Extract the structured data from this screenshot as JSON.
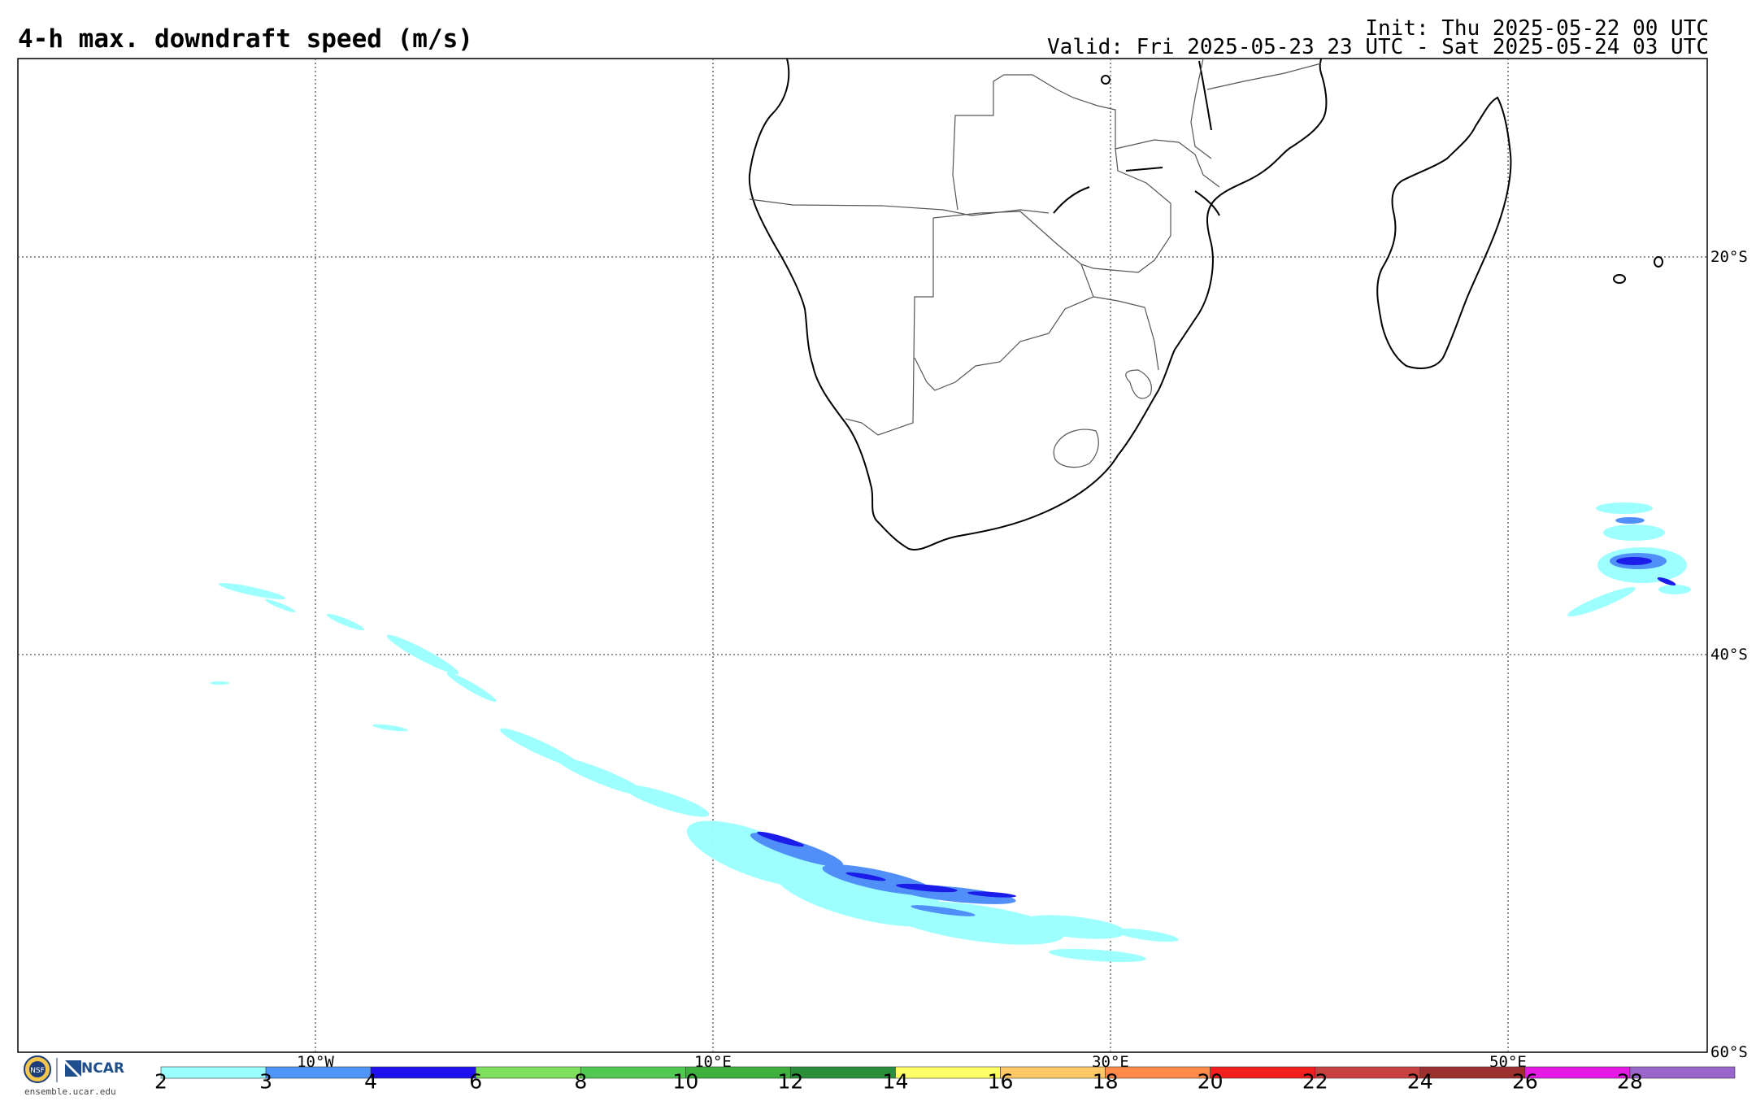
{
  "header": {
    "title": "4-h max. downdraft speed (m/s)",
    "init": "Init: Thu 2025-05-22 00 UTC",
    "valid": "Valid: Fri 2025-05-23 23 UTC - Sat 2025-05-24 03 UTC"
  },
  "map": {
    "lat_labels": [
      "20°S",
      "40°S",
      "60°S"
    ],
    "lon_labels": [
      "10°W",
      "10°E",
      "30°E",
      "50°E"
    ],
    "colors": {
      "coast": "#000000",
      "border": "#555555",
      "grid": "#555555",
      "field_low": "#99ffff",
      "field_mid": "#4f8ff7",
      "field_high": "#1c1cea"
    }
  },
  "colorbar": {
    "ticks": [
      "2",
      "3",
      "4",
      "6",
      "8",
      "10",
      "12",
      "14",
      "16",
      "18",
      "20",
      "22",
      "24",
      "26",
      "28"
    ],
    "colors": [
      "#99ffff",
      "#4f94f7",
      "#1f11ee",
      "#7fe05e",
      "#52c952",
      "#3eb03e",
      "#2a8f3a",
      "#ffff66",
      "#ffc866",
      "#ff8a4a",
      "#f21f1f",
      "#c94040",
      "#9e2f2f",
      "#e619e6",
      "#9a66cc"
    ]
  },
  "footer": {
    "site": "ensemble.ucar.edu",
    "ncar_label": "NCAR",
    "nsf_label": "NSF"
  }
}
